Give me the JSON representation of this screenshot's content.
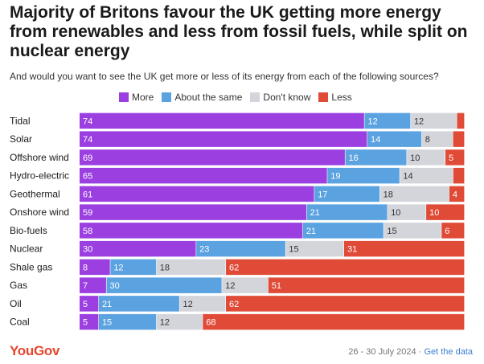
{
  "title": "Majority of Britons favour the UK getting more energy from renewables and less from fossil fuels, while split on nuclear energy",
  "subtitle": "And would you want to see the UK get more or less of its energy from each of the following sources?",
  "colors": {
    "more": "#9b3fe0",
    "same": "#5aa2e0",
    "dontknow": "#d3d5db",
    "less": "#e04b38"
  },
  "chart_data": {
    "type": "bar",
    "orientation": "horizontal",
    "stacked": true,
    "categories": [
      "Tidal",
      "Solar",
      "Offshore wind",
      "Hydro-electric",
      "Geothermal",
      "Onshore wind",
      "Bio-fuels",
      "Nuclear",
      "Shale gas",
      "Gas",
      "Oil",
      "Coal"
    ],
    "series": [
      {
        "name": "More",
        "key": "more",
        "values": [
          74,
          74,
          69,
          65,
          61,
          59,
          58,
          30,
          8,
          7,
          5,
          5
        ]
      },
      {
        "name": "About the same",
        "key": "same",
        "values": [
          12,
          14,
          16,
          19,
          17,
          21,
          21,
          23,
          12,
          30,
          21,
          15
        ]
      },
      {
        "name": "Don't know",
        "key": "dontknow",
        "values": [
          12,
          8,
          10,
          14,
          18,
          10,
          15,
          15,
          18,
          12,
          12,
          12
        ]
      },
      {
        "name": "Less",
        "key": "less",
        "values": [
          2,
          3,
          5,
          3,
          4,
          10,
          6,
          31,
          62,
          51,
          62,
          68
        ]
      }
    ],
    "legend": [
      "More",
      "About the same",
      "Don't know",
      "Less"
    ],
    "legend_position": "top",
    "value_labels_hidden_below": 4,
    "xlim": [
      0,
      100
    ]
  },
  "footer": {
    "brand": "YouGov",
    "date": "26 - 30 July 2024",
    "separator": "·",
    "link": "Get the data"
  }
}
